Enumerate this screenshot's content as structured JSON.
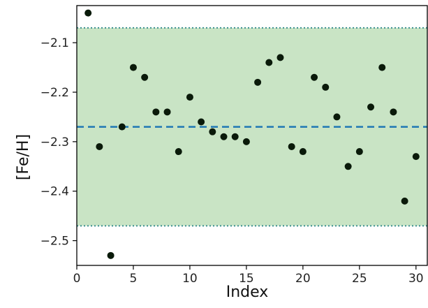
{
  "chart_data": {
    "type": "scatter",
    "title": "",
    "xlabel": "Index",
    "ylabel": "[Fe/H]",
    "xlim": [
      0,
      31
    ],
    "ylim": [
      -2.55,
      -2.025
    ],
    "xticks": [
      0,
      5,
      10,
      15,
      20,
      25,
      30
    ],
    "xtick_labels": [
      "0",
      "5",
      "10",
      "15",
      "20",
      "25",
      "30"
    ],
    "yticks": [
      -2.1,
      -2.2,
      -2.3,
      -2.4,
      -2.5
    ],
    "ytick_labels": [
      "−2.1",
      "−2.2",
      "−2.3",
      "−2.4",
      "−2.5"
    ],
    "grid": false,
    "mean_line": {
      "y": -2.27,
      "style": "dashed",
      "color": "#1f77b4"
    },
    "band": {
      "y_low": -2.47,
      "y_high": -2.07,
      "fill": "#c9e4c5",
      "edge_style": "dotted",
      "edge_color": "#3a8f8f"
    },
    "series": [
      {
        "color": "#0a1a0a",
        "x": [
          1,
          2,
          3,
          4,
          5,
          6,
          7,
          8,
          9,
          10,
          11,
          12,
          13,
          14,
          15,
          16,
          17,
          18,
          19,
          20,
          21,
          22,
          23,
          24,
          25,
          26,
          27,
          28,
          29,
          30
        ],
        "y": [
          -2.04,
          -2.31,
          -2.53,
          -2.27,
          -2.15,
          -2.17,
          -2.24,
          -2.24,
          -2.32,
          -2.21,
          -2.26,
          -2.28,
          -2.29,
          -2.29,
          -2.3,
          -2.18,
          -2.14,
          -2.13,
          -2.31,
          -2.32,
          -2.17,
          -2.19,
          -2.25,
          -2.35,
          -2.32,
          -2.23,
          -2.15,
          -2.24,
          -2.42,
          -2.33
        ]
      }
    ]
  }
}
